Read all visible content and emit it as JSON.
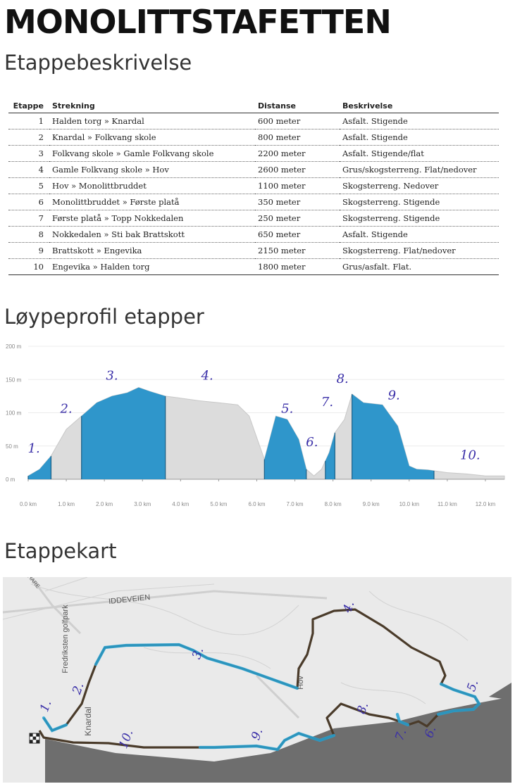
{
  "title": "MONOLITTSTAFETTEN",
  "sections": {
    "stages": "Etappebeskrivelse",
    "profile": "Løypeprofil etapper",
    "map": "Etappekart"
  },
  "table": {
    "headers": [
      "Etappe",
      "Strekning",
      "Distanse",
      "Beskrivelse"
    ],
    "rows": [
      {
        "n": "1",
        "route": "Halden torg » Knardal",
        "dist": "600 meter",
        "desc": "Asfalt. Stigende"
      },
      {
        "n": "2",
        "route": "Knardal » Folkvang skole",
        "dist": "800 meter",
        "desc": "Asfalt. Stigende"
      },
      {
        "n": "3",
        "route": "Folkvang skole » Gamle Folkvang skole",
        "dist": "2200 meter",
        "desc": "Asfalt. Stigende/flat"
      },
      {
        "n": "4",
        "route": "Gamle Folkvang skole » Hov",
        "dist": "2600 meter",
        "desc": "Grus/skogsterreng. Flat/nedover"
      },
      {
        "n": "5",
        "route": "Hov » Monolittbruddet",
        "dist": "1100 meter",
        "desc": "Skogsterreng. Nedover"
      },
      {
        "n": "6",
        "route": "Monolittbruddet » Første platå",
        "dist": "350 meter",
        "desc": "Skogsterreng. Stigende"
      },
      {
        "n": "7",
        "route": "Første platå » Topp Nokkedalen",
        "dist": "250 meter",
        "desc": "Skogsterreng. Stigende"
      },
      {
        "n": "8",
        "route": "Nokkedalen » Sti bak Brattskott",
        "dist": "650 meter",
        "desc": "Asfalt. Stigende"
      },
      {
        "n": "9",
        "route": "Brattskott » Engevika",
        "dist": "2150 meter",
        "desc": "Skogsterreng. Flat/nedover"
      },
      {
        "n": "10",
        "route": "Engevika » Halden torg",
        "dist": "1800 meter",
        "desc": "Grus/asfalt. Flat."
      }
    ]
  },
  "chart_data": {
    "type": "area",
    "ylim": [
      0,
      200
    ],
    "xlim": [
      0,
      12.5
    ],
    "y_ticks": [
      "200 m",
      "150 m",
      "100 m",
      "50 m",
      "0 m"
    ],
    "x_ticks": [
      "0.0 km",
      "1.0 km",
      "2.0 km",
      "3.0 km",
      "4.0 km",
      "5.0 km",
      "6.0 km",
      "7.0 km",
      "8.0 km",
      "9.0 km",
      "10.0 km",
      "11.0 km",
      "12.0 km"
    ],
    "profile": {
      "x": [
        0,
        0.3,
        0.6,
        1.0,
        1.4,
        1.8,
        2.2,
        2.6,
        2.9,
        3.2,
        3.6,
        4.0,
        4.5,
        5.0,
        5.5,
        5.8,
        6.2,
        6.5,
        6.8,
        7.1,
        7.3,
        7.5,
        7.7,
        7.9,
        8.05,
        8.3,
        8.5,
        8.8,
        9.3,
        9.7,
        10.0,
        10.2,
        10.5,
        11.0,
        11.5,
        12.0,
        12.5
      ],
      "y": [
        5,
        15,
        35,
        75,
        95,
        115,
        125,
        130,
        138,
        132,
        125,
        122,
        118,
        115,
        112,
        95,
        30,
        95,
        90,
        60,
        15,
        5,
        15,
        40,
        70,
        90,
        128,
        115,
        112,
        80,
        20,
        15,
        14,
        10,
        8,
        5,
        5
      ]
    },
    "stage_bands": [
      {
        "label": "1.",
        "from": 0.0,
        "to": 0.6
      },
      {
        "label": "2.",
        "from": 1.4,
        "to": 1.4
      },
      {
        "label": "3.",
        "from": 1.4,
        "to": 3.6
      },
      {
        "label": "4.",
        "from": 3.6,
        "to": 3.6
      },
      {
        "label": "5.",
        "from": 6.2,
        "to": 7.3
      },
      {
        "label": "6.",
        "from": 7.3,
        "to": 7.3
      },
      {
        "label": "7.",
        "from": 7.8,
        "to": 8.05
      },
      {
        "label": "8.",
        "from": 8.5,
        "to": 8.5
      },
      {
        "label": "9.",
        "from": 8.5,
        "to": 10.65
      },
      {
        "label": "10.",
        "from": 10.65,
        "to": 10.65
      }
    ],
    "colors": {
      "profile": "#dcdcdc",
      "highlight": "#1f8fc9"
    }
  },
  "map": {
    "road_labels": [
      "IDDEVEIEN",
      "Fredriksten golfpark",
      "Knardal",
      "Hov",
      "HARE"
    ],
    "stage_labels": [
      "1.",
      "2.",
      "3.",
      "4.",
      "5.",
      "6.",
      "7.",
      "8.",
      "9.",
      "10."
    ],
    "colors": {
      "route": "#4a3b2a",
      "highlight": "#27a4d6",
      "water": "#6e6e6e",
      "land": "#e8e8e8"
    },
    "icons": [
      "finish-flag-icon"
    ]
  }
}
